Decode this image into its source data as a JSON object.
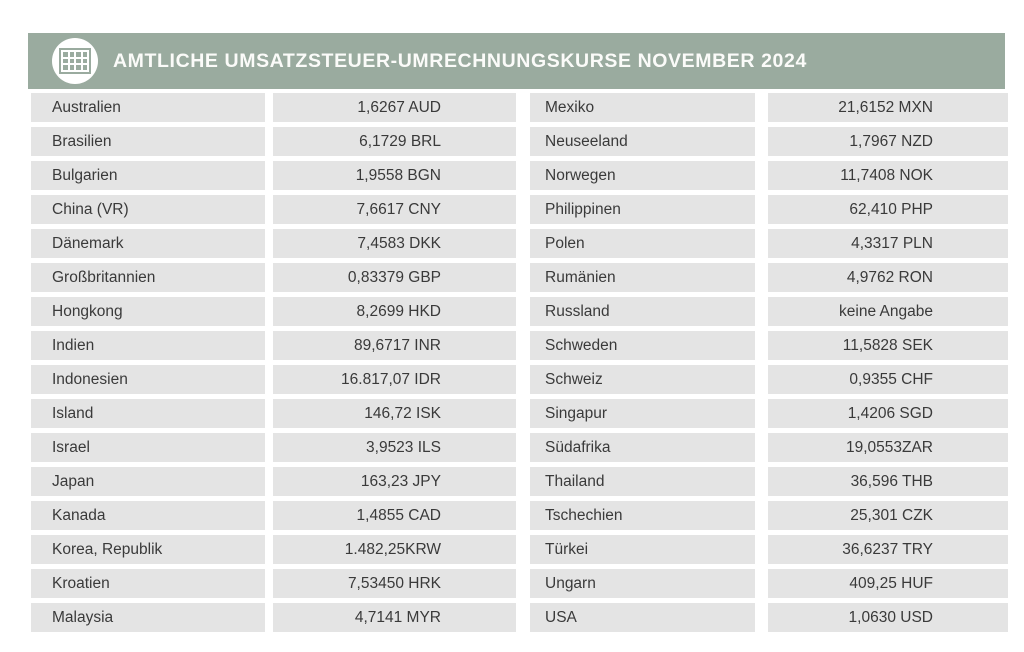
{
  "header": {
    "title": "AMTLICHE UMSATZSTEUER-UMRECHNUNGSKURSE NOVEMBER 2024",
    "icon": "table-grid-icon"
  },
  "colors": {
    "header_bg": "#9AAB9F",
    "row_bg": "#E4E4E4",
    "text": "#3A3A3A",
    "title_text": "#FBFBF9"
  },
  "table": {
    "description": "Official VAT currency conversion rates, November 2024; two country/rate column pairs",
    "rows": [
      {
        "left_country": "Australien",
        "left_value": "1,6267 AUD",
        "right_country": "Mexiko",
        "right_value": "21,6152 MXN"
      },
      {
        "left_country": "Brasilien",
        "left_value": "6,1729 BRL",
        "right_country": "Neuseeland",
        "right_value": "1,7967 NZD"
      },
      {
        "left_country": "Bulgarien",
        "left_value": "1,9558 BGN",
        "right_country": "Norwegen",
        "right_value": "11,7408 NOK"
      },
      {
        "left_country": "China (VR)",
        "left_value": "7,6617 CNY",
        "right_country": "Philippinen",
        "right_value": "62,410 PHP"
      },
      {
        "left_country": "Dänemark",
        "left_value": "7,4583 DKK",
        "right_country": "Polen",
        "right_value": "4,3317 PLN"
      },
      {
        "left_country": "Großbritannien",
        "left_value": "0,83379 GBP",
        "right_country": "Rumänien",
        "right_value": "4,9762 RON"
      },
      {
        "left_country": "Hongkong",
        "left_value": "8,2699 HKD",
        "right_country": "Russland",
        "right_value": "keine Angabe"
      },
      {
        "left_country": "Indien",
        "left_value": "89,6717 INR",
        "right_country": "Schweden",
        "right_value": "11,5828 SEK"
      },
      {
        "left_country": "Indonesien",
        "left_value": "16.817,07 IDR",
        "right_country": "Schweiz",
        "right_value": "0,9355 CHF"
      },
      {
        "left_country": "Island",
        "left_value": "146,72 ISK",
        "right_country": "Singapur",
        "right_value": "1,4206 SGD"
      },
      {
        "left_country": "Israel",
        "left_value": "3,9523 ILS",
        "right_country": "Südafrika",
        "right_value": "19,0553ZAR"
      },
      {
        "left_country": "Japan",
        "left_value": "163,23 JPY",
        "right_country": "Thailand",
        "right_value": "36,596 THB"
      },
      {
        "left_country": "Kanada",
        "left_value": "1,4855 CAD",
        "right_country": "Tschechien",
        "right_value": "25,301 CZK"
      },
      {
        "left_country": "Korea, Republik",
        "left_value": "1.482,25KRW",
        "right_country": "Türkei",
        "right_value": "36,6237 TRY"
      },
      {
        "left_country": "Kroatien",
        "left_value": "7,53450 HRK",
        "right_country": "Ungarn",
        "right_value": "409,25 HUF"
      },
      {
        "left_country": "Malaysia",
        "left_value": "4,7141 MYR",
        "right_country": "USA",
        "right_value": "1,0630 USD"
      }
    ]
  }
}
